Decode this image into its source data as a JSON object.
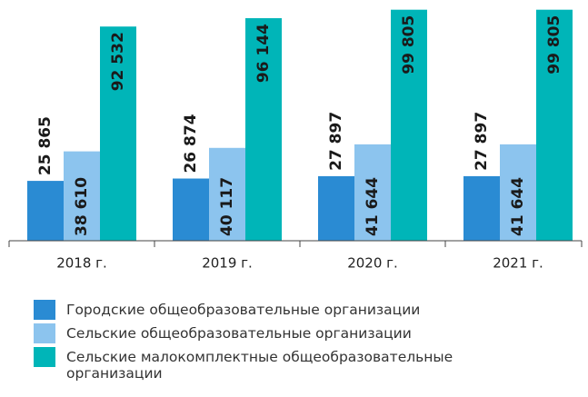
{
  "chart_data": {
    "type": "bar",
    "categories": [
      "2018 г.",
      "2019 г.",
      "2020 г.",
      "2021 г."
    ],
    "ylim": [
      0,
      104000
    ],
    "series": [
      {
        "name": "Городские общеобразовательные организации",
        "color": "#2a8bd3",
        "values": [
          25865,
          26874,
          27897,
          27897
        ],
        "value_labels": [
          "25 865",
          "26 874",
          "27 897",
          "27 897"
        ]
      },
      {
        "name": "Сельские общеобразовательные организации",
        "color": "#8cc4ee",
        "values": [
          38610,
          40117,
          41644,
          41644
        ],
        "value_labels": [
          "38 610",
          "40 117",
          "41 644",
          "41 644"
        ]
      },
      {
        "name": "Сельские малокомплектные общеобразовательные организации",
        "color": "#00b5b8",
        "values": [
          92532,
          96144,
          99805,
          99805
        ],
        "value_labels": [
          "92 532",
          "96 144",
          "99 805",
          "99 805"
        ]
      }
    ]
  }
}
